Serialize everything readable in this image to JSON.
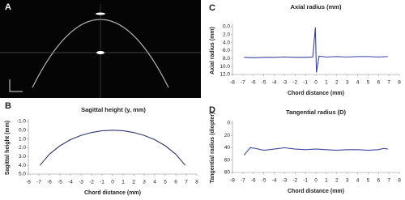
{
  "image_panel": {
    "label": "A"
  },
  "chart_data": [
    {
      "type": "line",
      "panel": "B",
      "title": "Sagittal height (y, mm)",
      "x_label": "Chord distance (mm)",
      "y_label": "Sagittal height (mm)",
      "color": "#2e3470",
      "x": [
        -6.9,
        -6,
        -5,
        -4,
        -3,
        -2,
        -1,
        0,
        1,
        2,
        3,
        4,
        5,
        6,
        6.9
      ],
      "values": [
        4.0,
        2.73,
        1.77,
        1.08,
        0.59,
        0.26,
        0.06,
        0.0,
        0.06,
        0.26,
        0.59,
        1.08,
        1.77,
        2.73,
        4.0
      ],
      "xlim": [
        -8,
        8
      ],
      "xticks": [
        -8,
        -7,
        -6,
        -5,
        -4,
        -3,
        -2,
        -1,
        0,
        1,
        2,
        3,
        4,
        5,
        6,
        7,
        8
      ],
      "ylim": [
        5,
        -1
      ],
      "yticks": [
        {
          "value": -1,
          "label": "-1.0"
        },
        {
          "value": 0,
          "label": "0.0"
        },
        {
          "value": 1,
          "label": "1.0"
        },
        {
          "value": 2,
          "label": "2.0"
        },
        {
          "value": 3,
          "label": "3.0"
        },
        {
          "value": 4,
          "label": "4.0"
        },
        {
          "value": 5,
          "label": "5.0"
        }
      ]
    },
    {
      "type": "line",
      "panel": "C",
      "title": "Axial radius (mm)",
      "x_label": "Chord distance (mm)",
      "y_label": "Axial radius (mm)",
      "color": "#3a45a0",
      "x": [
        -6.9,
        -6,
        -5,
        -4,
        -3,
        -2,
        -1,
        -0.3,
        -0.05,
        0.05,
        0.3,
        1,
        2,
        3,
        4,
        5,
        6,
        6.9
      ],
      "values": [
        7.7,
        7.8,
        7.7,
        7.7,
        7.6,
        7.7,
        7.7,
        7.6,
        0.2,
        11.5,
        7.4,
        7.6,
        7.5,
        7.6,
        7.5,
        7.5,
        7.6,
        7.5
      ],
      "xlim": [
        -8,
        8
      ],
      "xticks": [
        -8,
        -7,
        -6,
        -5,
        -4,
        -3,
        -2,
        -1,
        0,
        1,
        2,
        3,
        4,
        5,
        6,
        7,
        8
      ],
      "ylim": [
        12,
        0
      ],
      "yticks": [
        {
          "value": 0,
          "label": "0.0"
        },
        {
          "value": 2,
          "label": "2.0"
        },
        {
          "value": 4,
          "label": "4.0"
        },
        {
          "value": 6,
          "label": "6.0"
        },
        {
          "value": 8,
          "label": "8.0"
        },
        {
          "value": 10,
          "label": "10.0"
        },
        {
          "value": 12,
          "label": "12.0"
        }
      ]
    },
    {
      "type": "line",
      "panel": "D",
      "title": "Tangential radius (D)",
      "x_label": "Chord distance (mm)",
      "y_label": "Tangential radius (diopter)",
      "color": "#3a45a0",
      "x": [
        -6.9,
        -6.6,
        -6.3,
        -5.8,
        -5,
        -4,
        -3,
        -2,
        -1,
        0,
        1,
        2,
        3,
        4,
        5,
        6,
        6.5,
        6.9
      ],
      "values": [
        52,
        46,
        40,
        41,
        44,
        42,
        40,
        42,
        43,
        42,
        43,
        44,
        43,
        43,
        44,
        43,
        41,
        42
      ],
      "xlim": [
        -8,
        8
      ],
      "xticks": [
        -8,
        -7,
        -6,
        -5,
        -4,
        -3,
        -2,
        -1,
        0,
        1,
        2,
        3,
        4,
        5,
        6,
        7,
        8
      ],
      "ylim": [
        80,
        0
      ],
      "yticks": [
        0,
        20,
        40,
        60,
        80
      ]
    }
  ]
}
